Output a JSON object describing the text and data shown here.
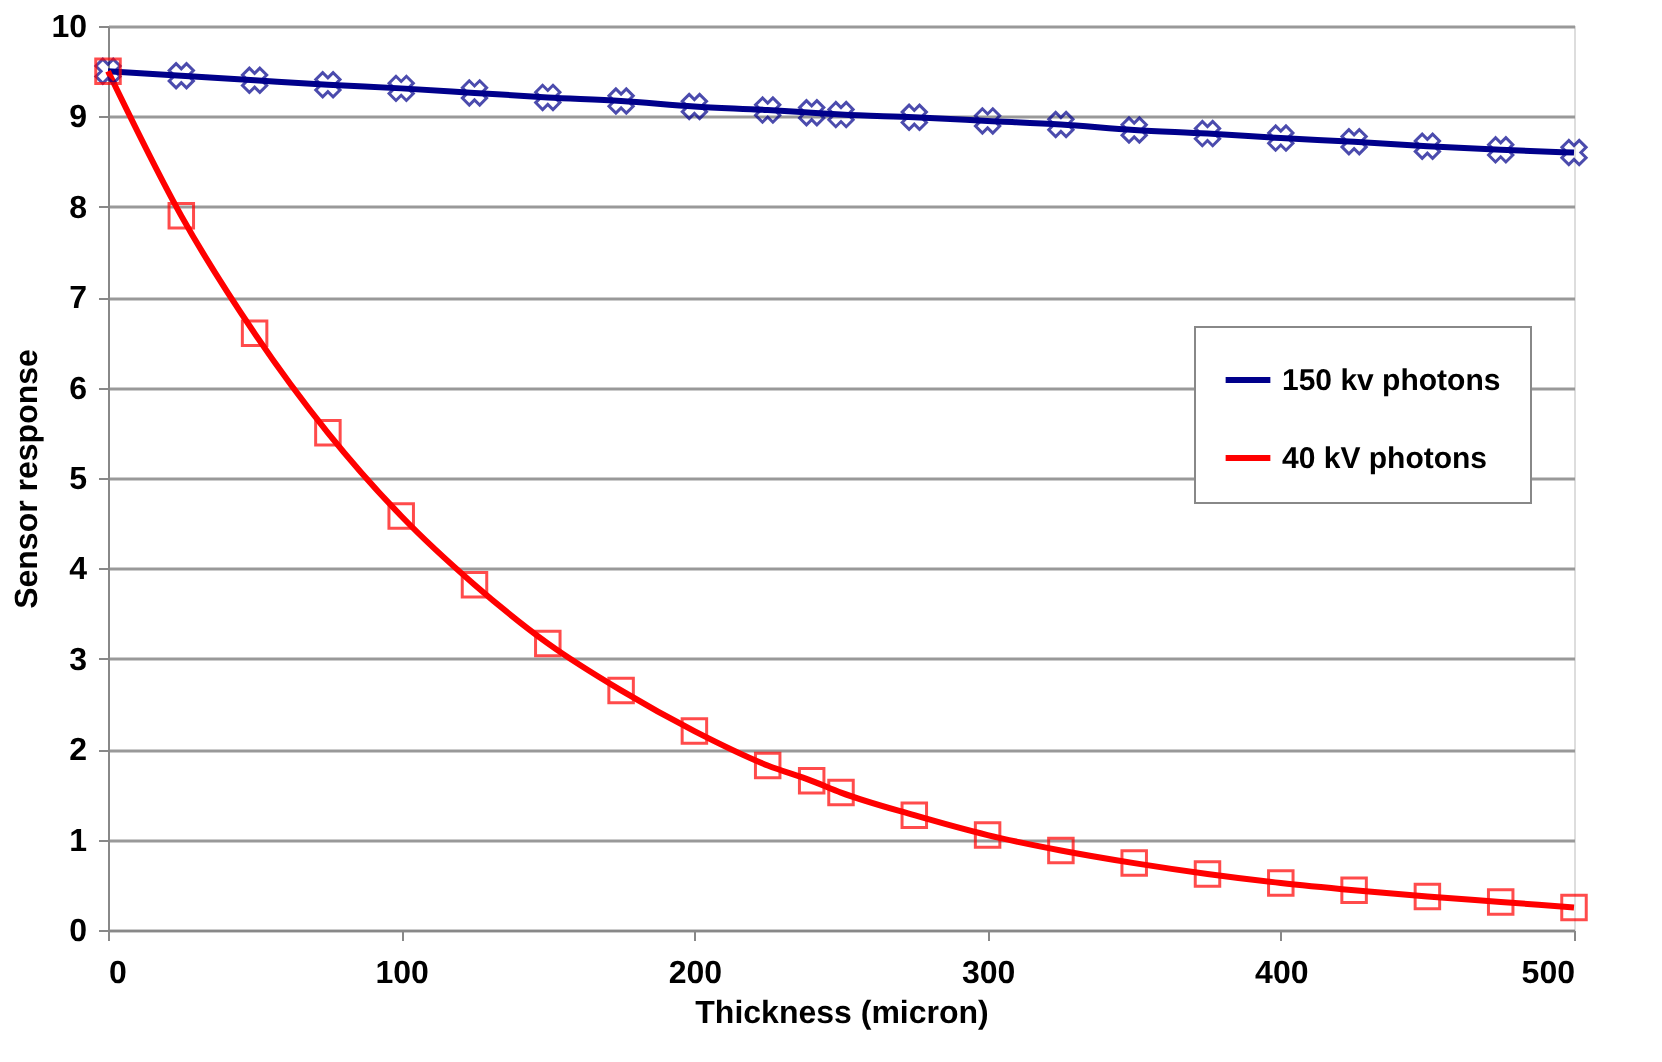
{
  "chart_data": {
    "type": "line",
    "xlabel": "Thickness (micron)",
    "ylabel": "Sensor response",
    "x": [
      0,
      25,
      50,
      75,
      100,
      125,
      150,
      175,
      200,
      225,
      240,
      250,
      275,
      300,
      325,
      350,
      375,
      400,
      425,
      450,
      475,
      500
    ],
    "series": [
      {
        "name": "150 kv photons",
        "color": "#00008b",
        "marker": "cross",
        "values": [
          9.5,
          9.45,
          9.4,
          9.35,
          9.31,
          9.26,
          9.21,
          9.17,
          9.11,
          9.07,
          9.04,
          9.02,
          8.99,
          8.95,
          8.91,
          8.85,
          8.81,
          8.76,
          8.72,
          8.67,
          8.63,
          8.6
        ]
      },
      {
        "name": "40 kV photons",
        "color": "#ff0000",
        "marker": "square",
        "values": [
          9.5,
          7.9,
          6.6,
          5.5,
          4.58,
          3.82,
          3.17,
          2.65,
          2.2,
          1.82,
          1.65,
          1.52,
          1.27,
          1.05,
          0.88,
          0.74,
          0.62,
          0.52,
          0.44,
          0.37,
          0.31,
          0.25
        ]
      }
    ],
    "xlim": [
      0,
      500
    ],
    "xticks": [
      0,
      100,
      200,
      300,
      400,
      500
    ],
    "ylim": [
      0,
      10
    ],
    "yticks": [
      0,
      1,
      2,
      3,
      4,
      5,
      6,
      7,
      8,
      9,
      10
    ],
    "grid": "y",
    "legend": "right",
    "line_style": "solid"
  }
}
